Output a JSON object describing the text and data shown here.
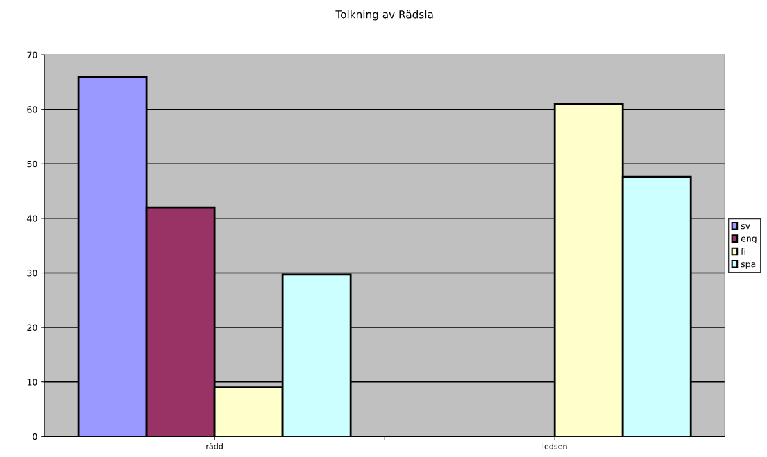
{
  "chart_data": {
    "type": "bar",
    "title": "Tolkning av Rädsla",
    "categories": [
      "rädd",
      "ledsen"
    ],
    "series": [
      {
        "name": "sv",
        "color": "#9999ff",
        "values": [
          66,
          null
        ]
      },
      {
        "name": "eng",
        "color": "#993366",
        "values": [
          42,
          null
        ]
      },
      {
        "name": "fi",
        "color": "#ffffcc",
        "values": [
          9,
          61
        ]
      },
      {
        "name": "spa",
        "color": "#ccffff",
        "values": [
          29.7,
          47.6
        ]
      }
    ],
    "ylim": [
      0,
      70
    ],
    "yticks": [
      0,
      10,
      20,
      30,
      40,
      50,
      60,
      70
    ],
    "grid": "y",
    "legend": "right"
  }
}
